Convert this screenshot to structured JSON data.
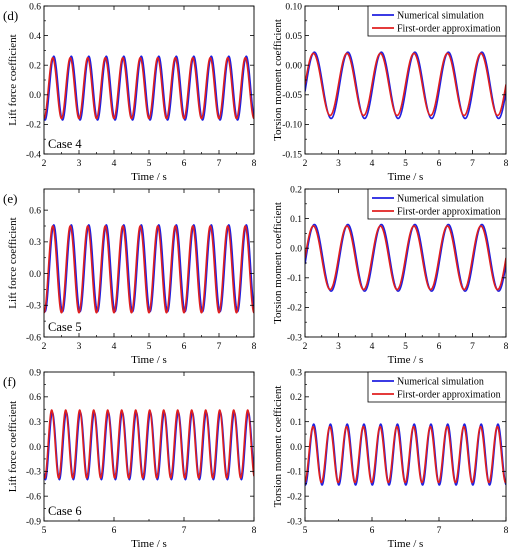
{
  "colors": {
    "numerical": "#1f1fe0",
    "approximation": "#e01f1f"
  },
  "legend": {
    "numerical": "Numerical simulation",
    "approximation": "First-order approximation"
  },
  "chart_data": [
    {
      "id": "d-lift",
      "type": "line",
      "panel_label": "(d)",
      "case_label": "Case 4",
      "xlabel": "Time / s",
      "ylabel": "Lift force coefficient",
      "xlim": [
        2,
        8
      ],
      "ylim": [
        -0.4,
        0.6
      ],
      "xticks": [
        2,
        3,
        4,
        5,
        6,
        7,
        8
      ],
      "yticks": [
        -0.4,
        -0.2,
        0.0,
        0.2,
        0.4,
        0.6
      ],
      "xtick_labels": [
        "2",
        "3",
        "4",
        "5",
        "6",
        "7",
        "8"
      ],
      "ytick_labels": [
        "-0.4",
        "-0.2",
        "0.0",
        "0.2",
        "0.4",
        "0.6"
      ],
      "legend": false,
      "series": [
        {
          "key": "numerical",
          "max": 0.26,
          "min": -0.17,
          "period": 0.5,
          "first_peak_x": 2.78
        },
        {
          "key": "approximation",
          "max": 0.25,
          "min": -0.16,
          "period": 0.5,
          "first_peak_x": 2.75
        }
      ]
    },
    {
      "id": "d-torsion",
      "type": "line",
      "xlabel": "Time / s",
      "ylabel": "Torsion moment coefficient",
      "xlim": [
        2,
        8
      ],
      "ylim": [
        -0.15,
        0.1
      ],
      "xticks": [
        2,
        3,
        4,
        5,
        6,
        7,
        8
      ],
      "yticks": [
        -0.15,
        -0.1,
        -0.05,
        0.0,
        0.05,
        0.1
      ],
      "xtick_labels": [
        "2",
        "3",
        "4",
        "5",
        "6",
        "7",
        "8"
      ],
      "ytick_labels": [
        "-0.15",
        "-0.10",
        "-0.05",
        "0.00",
        "0.05",
        "0.10"
      ],
      "legend": true,
      "legend_position": "top-right",
      "series": [
        {
          "key": "numerical",
          "max": 0.022,
          "min": -0.09,
          "period": 1.0,
          "first_peak_x": 2.28
        },
        {
          "key": "approximation",
          "max": 0.02,
          "min": -0.085,
          "period": 1.0,
          "first_peak_x": 2.25
        }
      ]
    },
    {
      "id": "e-lift",
      "type": "line",
      "panel_label": "(e)",
      "case_label": "Case 5",
      "xlabel": "Time / s",
      "ylabel": "Lift force coefficient",
      "xlim": [
        2,
        8
      ],
      "ylim": [
        -0.6,
        0.8
      ],
      "xticks": [
        2,
        3,
        4,
        5,
        6,
        7,
        8
      ],
      "yticks": [
        -0.6,
        -0.3,
        0.0,
        0.3,
        0.6
      ],
      "xtick_labels": [
        "2",
        "3",
        "4",
        "5",
        "6",
        "7",
        "8"
      ],
      "ytick_labels": [
        "-0.6",
        "-0.3",
        "0.0",
        "0.3",
        "0.6"
      ],
      "legend": false,
      "series": [
        {
          "key": "numerical",
          "max": 0.46,
          "min": -0.36,
          "period": 0.5,
          "first_peak_x": 2.78
        },
        {
          "key": "approximation",
          "max": 0.45,
          "min": -0.37,
          "period": 0.5,
          "first_peak_x": 2.75
        }
      ]
    },
    {
      "id": "e-torsion",
      "type": "line",
      "xlabel": "Time / s",
      "ylabel": "Torsion moment coefficient",
      "xlim": [
        2,
        8
      ],
      "ylim": [
        -0.3,
        0.2
      ],
      "xticks": [
        2,
        3,
        4,
        5,
        6,
        7,
        8
      ],
      "yticks": [
        -0.3,
        -0.2,
        -0.1,
        0.0,
        0.1,
        0.2
      ],
      "xtick_labels": [
        "2",
        "3",
        "4",
        "5",
        "6",
        "7",
        "8"
      ],
      "ytick_labels": [
        "-0.3",
        "-0.2",
        "-0.1",
        "0.0",
        "0.1",
        "0.2"
      ],
      "legend": true,
      "legend_position": "top-right",
      "series": [
        {
          "key": "numerical",
          "max": 0.08,
          "min": -0.145,
          "period": 1.0,
          "first_peak_x": 2.28
        },
        {
          "key": "approximation",
          "max": 0.075,
          "min": -0.14,
          "period": 1.0,
          "first_peak_x": 2.25
        }
      ]
    },
    {
      "id": "f-lift",
      "type": "line",
      "panel_label": "(f)",
      "case_label": "Case 6",
      "xlabel": "Time / s",
      "ylabel": "Lift force coefficient",
      "xlim": [
        5,
        8
      ],
      "ylim": [
        -0.9,
        0.9
      ],
      "xticks": [
        5,
        6,
        7,
        8
      ],
      "yticks": [
        -0.9,
        -0.6,
        -0.3,
        0.0,
        0.3,
        0.6,
        0.9
      ],
      "xtick_labels": [
        "5",
        "6",
        "7",
        "8"
      ],
      "ytick_labels": [
        "-0.9",
        "-0.6",
        "-0.3",
        "0.0",
        "0.3",
        "0.6",
        "0.9"
      ],
      "legend": false,
      "series": [
        {
          "key": "numerical",
          "max": 0.41,
          "min": -0.4,
          "period": 0.2,
          "first_peak_x": 5.12
        },
        {
          "key": "approximation",
          "max": 0.44,
          "min": -0.38,
          "period": 0.2,
          "first_peak_x": 5.11
        }
      ]
    },
    {
      "id": "f-torsion",
      "type": "line",
      "xlabel": "Time / s",
      "ylabel": "Torsion moment coefficient",
      "xlim": [
        5,
        8
      ],
      "ylim": [
        -0.3,
        0.3
      ],
      "xticks": [
        5,
        6,
        7,
        8
      ],
      "yticks": [
        -0.3,
        -0.2,
        -0.1,
        0.0,
        0.1,
        0.2,
        0.3
      ],
      "xtick_labels": [
        "5",
        "6",
        "7",
        "8"
      ],
      "ytick_labels": [
        "-0.3",
        "-0.2",
        "-0.1",
        "0.0",
        "0.1",
        "0.2",
        "0.3"
      ],
      "legend": true,
      "legend_position": "top-right",
      "series": [
        {
          "key": "numerical",
          "max": 0.09,
          "min": -0.155,
          "period": 0.25,
          "first_peak_x": 5.13
        },
        {
          "key": "approximation",
          "max": 0.08,
          "min": -0.145,
          "period": 0.25,
          "first_peak_x": 5.12
        }
      ]
    }
  ]
}
